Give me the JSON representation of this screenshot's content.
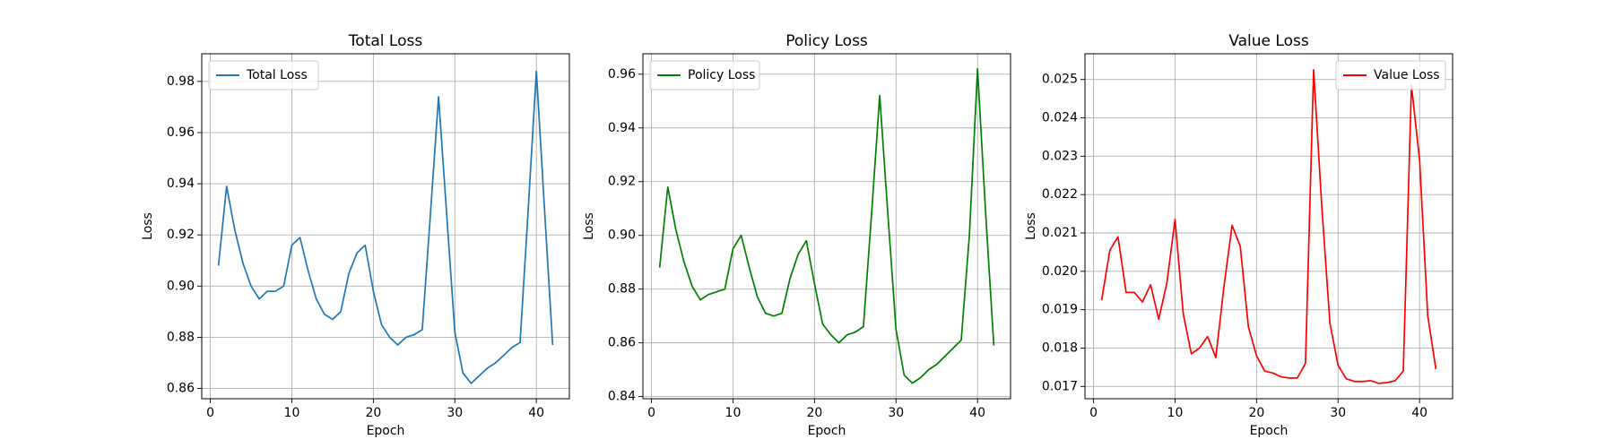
{
  "chart_data": [
    {
      "type": "line",
      "title": "Total Loss",
      "xlabel": "Epoch",
      "ylabel": "Loss",
      "x": [
        1,
        2,
        3,
        4,
        5,
        6,
        7,
        8,
        9,
        10,
        11,
        12,
        13,
        14,
        15,
        16,
        17,
        18,
        19,
        20,
        21,
        22,
        23,
        24,
        25,
        26,
        27,
        28,
        29,
        30,
        31,
        32,
        33,
        34,
        35,
        36,
        37,
        38,
        39,
        40,
        41,
        42
      ],
      "series": [
        {
          "name": "Total Loss",
          "color": "#1f77b4",
          "values": [
            0.908,
            0.939,
            0.922,
            0.909,
            0.9,
            0.895,
            0.898,
            0.898,
            0.9,
            0.916,
            0.919,
            0.906,
            0.895,
            0.889,
            0.887,
            0.89,
            0.905,
            0.913,
            0.916,
            0.898,
            0.885,
            0.88,
            0.877,
            0.88,
            0.881,
            0.883,
            0.928,
            0.974,
            0.928,
            0.882,
            0.866,
            0.862,
            0.865,
            0.868,
            0.87,
            0.873,
            0.876,
            0.878,
            0.93,
            0.984,
            0.93,
            0.877
          ]
        }
      ],
      "xlim": [
        -1.05,
        44.05
      ],
      "ylim": [
        0.856,
        0.9908
      ],
      "xticks": [
        0,
        10,
        20,
        30,
        40
      ],
      "yticks": [
        0.86,
        0.88,
        {
          "value": 0.9,
          "label": "0.90"
        },
        0.92,
        0.94,
        0.96,
        0.98
      ],
      "grid": true,
      "legend": "upper left"
    },
    {
      "type": "line",
      "title": "Policy Loss",
      "xlabel": "Epoch",
      "ylabel": "Loss",
      "x": [
        1,
        2,
        3,
        4,
        5,
        6,
        7,
        8,
        9,
        10,
        11,
        12,
        13,
        14,
        15,
        16,
        17,
        18,
        19,
        20,
        21,
        22,
        23,
        24,
        25,
        26,
        27,
        28,
        29,
        30,
        31,
        32,
        33,
        34,
        35,
        36,
        37,
        38,
        39,
        40,
        41,
        42
      ],
      "series": [
        {
          "name": "Policy Loss",
          "color": "#008000",
          "values": [
            0.888,
            0.918,
            0.902,
            0.89,
            0.881,
            0.876,
            0.878,
            0.879,
            0.88,
            0.895,
            0.9,
            0.888,
            0.877,
            0.871,
            0.87,
            0.871,
            0.884,
            0.893,
            0.898,
            0.882,
            0.867,
            0.863,
            0.86,
            0.863,
            0.864,
            0.866,
            0.908,
            0.952,
            0.908,
            0.865,
            0.848,
            0.845,
            0.847,
            0.85,
            0.852,
            0.855,
            0.858,
            0.861,
            0.9,
            0.962,
            0.908,
            0.859
          ]
        }
      ],
      "xlim": [
        -1.05,
        44.05
      ],
      "ylim": [
        0.8392,
        0.9676
      ],
      "xticks": [
        0,
        10,
        20,
        30,
        40
      ],
      "yticks": [
        0.84,
        0.86,
        0.88,
        {
          "value": 0.9,
          "label": "0.90"
        },
        0.92,
        0.94,
        0.96
      ],
      "grid": true,
      "legend": "upper left"
    },
    {
      "type": "line",
      "title": "Value Loss",
      "xlabel": "Epoch",
      "ylabel": "Loss",
      "x": [
        1,
        2,
        3,
        4,
        5,
        6,
        7,
        8,
        9,
        10,
        11,
        12,
        13,
        14,
        15,
        16,
        17,
        18,
        19,
        20,
        21,
        22,
        23,
        24,
        25,
        26,
        27,
        28,
        29,
        30,
        31,
        32,
        33,
        34,
        35,
        36,
        37,
        38,
        39,
        40,
        41,
        42
      ],
      "series": [
        {
          "name": "Value Loss",
          "color": "#ff0000",
          "values": [
            0.01925,
            0.02055,
            0.0209,
            0.01945,
            0.01945,
            0.0192,
            0.01965,
            0.01875,
            0.0197,
            0.02135,
            0.0189,
            0.01785,
            0.018,
            0.0183,
            0.01775,
            0.0196,
            0.0212,
            0.02065,
            0.01855,
            0.0178,
            0.0174,
            0.01735,
            0.01725,
            0.01722,
            0.01722,
            0.0176,
            0.02525,
            0.0217,
            0.01865,
            0.01755,
            0.0172,
            0.01713,
            0.01713,
            0.01715,
            0.01708,
            0.0171,
            0.01715,
            0.0174,
            0.02485,
            0.0229,
            0.01885,
            0.01745
          ]
        }
      ],
      "xlim": [
        -1.05,
        44.05
      ],
      "ylim": [
        0.01668,
        0.02567
      ],
      "xticks": [
        0,
        10,
        20,
        30,
        40
      ],
      "yticks": [
        0.017,
        0.018,
        0.019,
        {
          "value": 0.02,
          "label": "0.020"
        },
        0.021,
        0.022,
        0.023,
        0.024,
        0.025
      ],
      "grid": true,
      "legend": "upper right"
    }
  ]
}
